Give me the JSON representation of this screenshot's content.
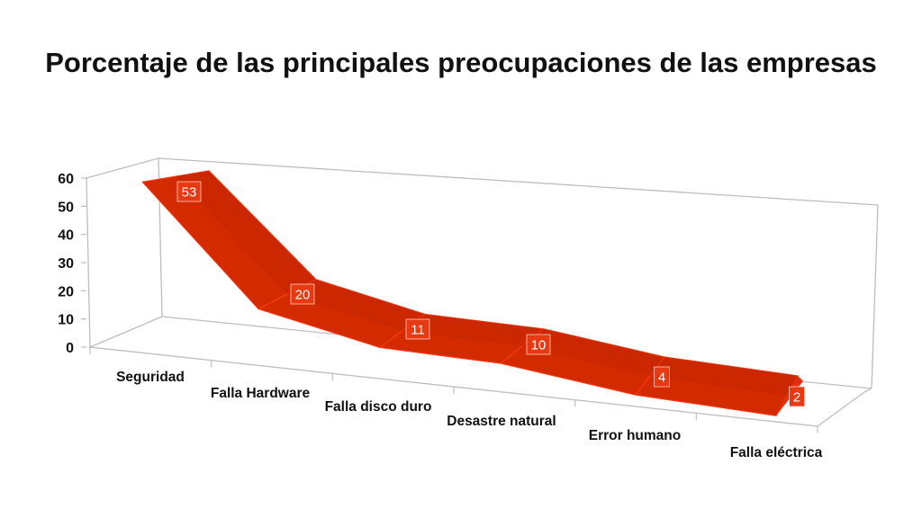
{
  "chart_data": {
    "type": "area",
    "title": "Porcentaje de las principales preocupaciones de las empresas",
    "categories": [
      "Seguridad",
      "Falla Hardware",
      "Falla disco duro",
      "Desastre natural",
      "Error humano",
      "Falla eléctrica"
    ],
    "values": [
      53,
      20,
      11,
      10,
      4,
      2
    ],
    "ylim": [
      0,
      60
    ],
    "yticks": [
      0,
      10,
      20,
      30,
      40,
      50,
      60
    ],
    "xlabel": "",
    "ylabel": "",
    "grid": false,
    "legend": "none",
    "series_color": "#d32a00",
    "label_bg": "#e83a12"
  }
}
